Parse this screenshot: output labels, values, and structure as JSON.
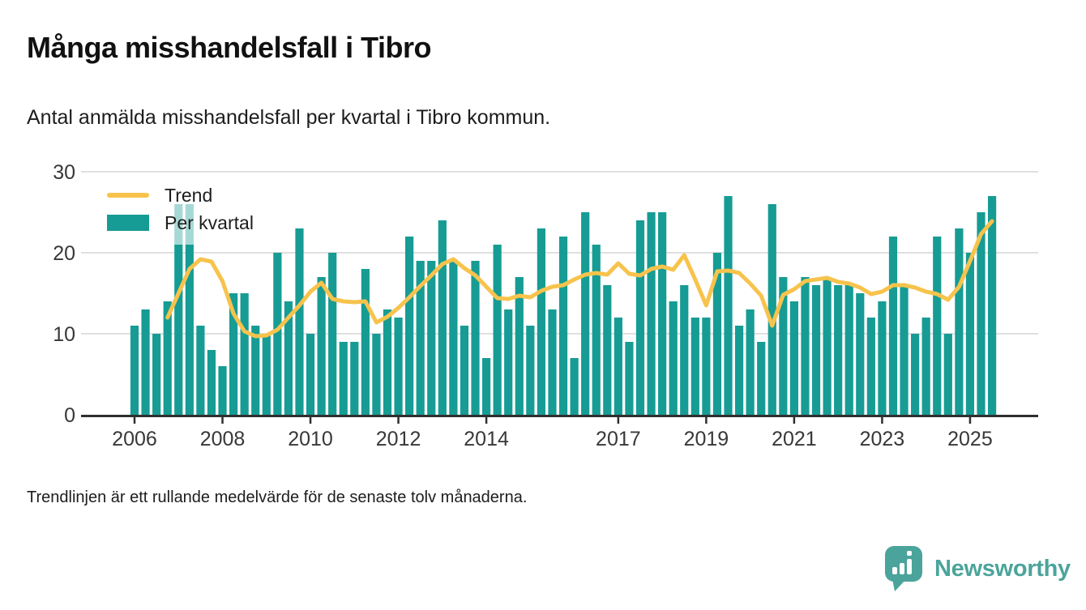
{
  "title": "Många misshandelsfall i Tibro",
  "subtitle": "Antal anmälda misshandelsfall per kvartal i Tibro kommun.",
  "footnote": "Trendlinjen är ett rullande medelvärde för de senaste tolv månaderna.",
  "branding": {
    "logo_text": "Newsworthy",
    "logo_icon": "bar-chart-speech-bubble-icon",
    "logo_color": "#4ba49b"
  },
  "legend": {
    "items": [
      {
        "label": "Trend",
        "type": "line",
        "color": "#f7c34c"
      },
      {
        "label": "Per kvartal",
        "type": "bar",
        "color": "#169c94"
      }
    ],
    "position": "top-left-inside-plot"
  },
  "colors": {
    "bar": "#169c94",
    "trend": "#f7c34c",
    "gridline": "#dcdcdc",
    "axis": "#2f2f2f",
    "tick_label": "#383838"
  },
  "chart_data": {
    "type": "bar",
    "title": "Många misshandelsfall i Tibro",
    "xlabel": "",
    "ylabel": "",
    "ylim": [
      0,
      30
    ],
    "y_ticks": [
      0,
      10,
      20,
      30
    ],
    "grid": "horizontal",
    "x_tick_labels": [
      "2006",
      "2008",
      "2010",
      "2012",
      "2014",
      "2017",
      "2019",
      "2021",
      "2023",
      "2025"
    ],
    "x_tick_indices": [
      0,
      8,
      16,
      24,
      32,
      44,
      52,
      60,
      68,
      76
    ],
    "categories": [
      "2006Q1",
      "2006Q2",
      "2006Q3",
      "2006Q4",
      "2007Q1",
      "2007Q2",
      "2007Q3",
      "2007Q4",
      "2008Q1",
      "2008Q2",
      "2008Q3",
      "2008Q4",
      "2009Q1",
      "2009Q2",
      "2009Q3",
      "2009Q4",
      "2010Q1",
      "2010Q2",
      "2010Q3",
      "2010Q4",
      "2011Q1",
      "2011Q2",
      "2011Q3",
      "2011Q4",
      "2012Q1",
      "2012Q2",
      "2012Q3",
      "2012Q4",
      "2013Q1",
      "2013Q2",
      "2013Q3",
      "2013Q4",
      "2014Q1",
      "2014Q2",
      "2014Q3",
      "2014Q4",
      "2015Q1",
      "2015Q2",
      "2015Q3",
      "2015Q4",
      "2016Q1",
      "2016Q2",
      "2016Q3",
      "2016Q4",
      "2017Q1",
      "2017Q2",
      "2017Q3",
      "2017Q4",
      "2018Q1",
      "2018Q2",
      "2018Q3",
      "2018Q4",
      "2019Q1",
      "2019Q2",
      "2019Q3",
      "2019Q4",
      "2020Q1",
      "2020Q2",
      "2020Q3",
      "2020Q4",
      "2021Q1",
      "2021Q2",
      "2021Q3",
      "2021Q4",
      "2022Q1",
      "2022Q2",
      "2022Q3",
      "2022Q4",
      "2023Q1",
      "2023Q2",
      "2023Q3",
      "2023Q4",
      "2024Q1",
      "2024Q2",
      "2024Q3",
      "2024Q4",
      "2025Q1",
      "2025Q2",
      "2025Q3"
    ],
    "series": [
      {
        "name": "Per kvartal",
        "type": "bar",
        "color": "#169c94",
        "values": [
          11,
          13,
          10,
          14,
          26,
          26,
          11,
          8,
          6,
          15,
          15,
          11,
          10,
          20,
          14,
          23,
          10,
          17,
          20,
          9,
          9,
          18,
          10,
          13,
          12,
          22,
          19,
          19,
          24,
          19,
          11,
          19,
          7,
          21,
          13,
          17,
          11,
          23,
          13,
          22,
          7,
          25,
          21,
          16,
          12,
          9,
          24,
          25,
          25,
          14,
          16,
          12,
          12,
          20,
          27,
          11,
          13,
          9,
          26,
          17,
          14,
          17,
          16,
          17,
          16,
          16,
          15,
          12,
          14,
          22,
          16,
          10,
          12,
          22,
          10,
          23,
          20,
          25,
          27
        ]
      },
      {
        "name": "Trend",
        "type": "line",
        "color": "#f7c34c",
        "values": [
          null,
          null,
          null,
          12.0,
          15.0,
          18.0,
          19.2,
          18.9,
          16.5,
          12.5,
          10.3,
          9.7,
          9.8,
          10.5,
          12.0,
          13.5,
          15.2,
          16.3,
          14.3,
          14.0,
          13.9,
          14.0,
          11.4,
          12.1,
          13.2,
          14.5,
          15.9,
          17.2,
          18.6,
          19.2,
          18.1,
          17.2,
          15.8,
          14.4,
          14.3,
          14.7,
          14.5,
          15.3,
          15.8,
          16.0,
          16.7,
          17.3,
          17.5,
          17.3,
          18.7,
          17.4,
          17.2,
          18.0,
          18.3,
          17.9,
          19.7,
          16.7,
          13.5,
          17.7,
          17.8,
          17.5,
          16.2,
          14.7,
          11.0,
          14.8,
          15.5,
          16.5,
          16.7,
          16.9,
          16.4,
          16.2,
          15.7,
          14.9,
          15.2,
          16.0,
          16.0,
          15.7,
          15.2,
          14.9,
          14.2,
          15.8,
          19.0,
          22.3,
          23.9
        ]
      }
    ]
  }
}
